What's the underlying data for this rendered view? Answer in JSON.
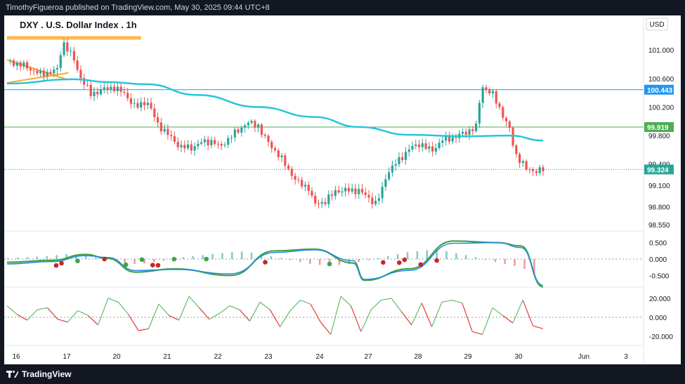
{
  "header": {
    "publisher": "TimothyFigueroa published on TradingView.com, May 30, 2025 09:44 UTC+8"
  },
  "footer": {
    "brand": "TradingView"
  },
  "symbol_title": "DXY . U.S. Dollar Index . 1h",
  "currency_label": "USD",
  "colors": {
    "up": "#26a69a",
    "down": "#ef5350",
    "ma_line": "#26c6da",
    "resistance_line": "#2196f3",
    "support_line": "#4caf50",
    "orange_zone": "#ffb74d",
    "macd_fast": "#1e88e5",
    "macd_slow_up": "#43a047",
    "macd_slow_down": "#b71c1c",
    "osc_up": "#66bb6a",
    "osc_down": "#e53935"
  },
  "chart_data": [
    {
      "type": "candlestick",
      "panel": "price",
      "yticks": [
        "101.000",
        "100.600",
        "100.200",
        "99.800",
        "99.400",
        "99.100",
        "98.800",
        "98.550"
      ],
      "price_labels": [
        {
          "text": "100.443",
          "role": "horizontal-line",
          "color": "#2196f3"
        },
        {
          "text": "99.919",
          "role": "horizontal-line",
          "color": "#4caf50"
        },
        {
          "text": "99.324",
          "role": "last-price",
          "color": "#26a69a"
        }
      ],
      "x_labels": [
        "16",
        "17",
        "20",
        "21",
        "22",
        "23",
        "24",
        "27",
        "28",
        "29",
        "30",
        "Jun",
        "3"
      ],
      "close_path": [
        [
          0,
          100.85
        ],
        [
          3,
          100.78
        ],
        [
          6,
          100.66
        ],
        [
          9,
          100.72
        ],
        [
          10,
          101.12
        ],
        [
          12,
          100.86
        ],
        [
          13,
          100.64
        ],
        [
          15,
          100.38
        ],
        [
          17,
          100.44
        ],
        [
          19,
          100.48
        ],
        [
          21,
          100.39
        ],
        [
          22,
          100.3
        ],
        [
          23,
          100.19
        ],
        [
          25,
          100.29
        ],
        [
          27,
          99.96
        ],
        [
          29,
          99.8
        ],
        [
          31,
          99.64
        ],
        [
          33,
          99.63
        ],
        [
          35,
          99.71
        ],
        [
          37,
          99.72
        ],
        [
          38,
          99.63
        ],
        [
          40,
          99.78
        ],
        [
          43,
          99.98
        ],
        [
          45,
          99.94
        ],
        [
          46,
          99.78
        ],
        [
          49,
          99.49
        ],
        [
          52,
          99.14
        ],
        [
          54,
          99.07
        ],
        [
          55,
          98.83
        ],
        [
          57,
          98.88
        ],
        [
          59,
          99.03
        ],
        [
          61,
          99.03
        ],
        [
          63,
          99.03
        ],
        [
          66,
          98.85
        ],
        [
          67,
          98.99
        ],
        [
          68,
          99.27
        ],
        [
          70,
          99.44
        ],
        [
          72,
          99.61
        ],
        [
          74,
          99.69
        ],
        [
          76,
          99.58
        ],
        [
          78,
          99.74
        ],
        [
          80,
          99.77
        ],
        [
          82,
          99.84
        ],
        [
          84,
          99.92
        ],
        [
          85,
          100.5
        ],
        [
          87,
          100.37
        ],
        [
          88,
          100.22
        ],
        [
          89,
          100.05
        ],
        [
          90,
          99.88
        ],
        [
          91,
          99.55
        ],
        [
          93,
          99.33
        ],
        [
          95,
          99.3
        ],
        [
          96,
          99.32
        ]
      ],
      "moving_average": [
        [
          0,
          100.53
        ],
        [
          12,
          100.59
        ],
        [
          18,
          100.55
        ],
        [
          25,
          100.52
        ],
        [
          34,
          100.37
        ],
        [
          45,
          100.2
        ],
        [
          55,
          100.06
        ],
        [
          63,
          99.92
        ],
        [
          72,
          99.81
        ],
        [
          82,
          99.79
        ],
        [
          90,
          99.8
        ],
        [
          96,
          99.73
        ]
      ],
      "orange_zone": {
        "price": 101.17,
        "from": 0,
        "to": 24
      },
      "orange_lines": [
        {
          "from": [
            0,
            100.54
          ],
          "to": [
            11,
            100.68
          ]
        },
        {
          "from": [
            0,
            100.86
          ],
          "to": [
            11,
            100.58
          ]
        }
      ]
    },
    {
      "type": "line",
      "panel": "macd",
      "yticks": [
        "0.500",
        "0.000",
        "-0.500"
      ],
      "series": [
        {
          "color": "#43a047",
          "values": [
            [
              0,
              -0.1
            ],
            [
              8,
              -0.04
            ],
            [
              14,
              0.14
            ],
            [
              18,
              0.02
            ],
            [
              23,
              -0.4
            ],
            [
              30,
              -0.3
            ],
            [
              40,
              -0.5
            ],
            [
              48,
              0.25
            ],
            [
              55,
              0.3
            ],
            [
              62,
              -0.12
            ],
            [
              64,
              -0.65
            ],
            [
              72,
              -0.3
            ],
            [
              80,
              0.55
            ],
            [
              88,
              0.5
            ],
            [
              92,
              0.4
            ],
            [
              96,
              -0.85
            ]
          ]
        },
        {
          "color": "#1e88e5",
          "values": [
            [
              0,
              -0.15
            ],
            [
              8,
              -0.08
            ],
            [
              14,
              0.1
            ],
            [
              18,
              0.05
            ],
            [
              23,
              -0.35
            ],
            [
              30,
              -0.32
            ],
            [
              40,
              -0.45
            ],
            [
              48,
              0.2
            ],
            [
              55,
              0.28
            ],
            [
              62,
              -0.05
            ],
            [
              64,
              -0.62
            ],
            [
              72,
              -0.35
            ],
            [
              80,
              0.48
            ],
            [
              88,
              0.5
            ],
            [
              92,
              0.35
            ],
            [
              96,
              -0.8
            ]
          ]
        }
      ],
      "histogram": [
        0.02,
        0.03,
        0.04,
        0.05,
        0.06,
        0.08,
        0.1,
        0.08,
        0.06,
        0.03,
        -0.02,
        -0.05,
        -0.08,
        -0.1,
        -0.09,
        -0.06,
        -0.03,
        0.02,
        0.04,
        0.06,
        0.08,
        0.1,
        0.12,
        0.14,
        0.15,
        0.13,
        0.1,
        0.06,
        0.02,
        -0.02,
        -0.06,
        -0.1,
        -0.12,
        -0.14,
        -0.12,
        -0.1,
        -0.06,
        -0.02,
        0.02,
        0.06,
        0.1,
        0.14,
        0.16,
        0.18,
        0.2,
        0.16,
        0.12,
        0.08,
        0.04,
        -0.02,
        -0.06,
        -0.1,
        -0.14,
        -0.2,
        -0.3
      ]
    },
    {
      "type": "line",
      "panel": "oscillator",
      "yticks": [
        "20.000",
        "0.000",
        "-20.000"
      ],
      "series": [
        {
          "values": [
            12,
            3,
            -3,
            8,
            10,
            -2,
            -5,
            7,
            2,
            -8,
            20,
            16,
            3,
            -14,
            -12,
            14,
            2,
            -3,
            22,
            10,
            -2,
            4,
            12,
            8,
            -4,
            16,
            8,
            -10,
            7,
            18,
            14,
            -5,
            -18,
            22,
            12,
            -15,
            8,
            18,
            20,
            6,
            -8,
            15,
            -10,
            16,
            18,
            15,
            -15,
            -18,
            10,
            2,
            -6,
            18,
            -9,
            -12
          ]
        }
      ]
    }
  ]
}
